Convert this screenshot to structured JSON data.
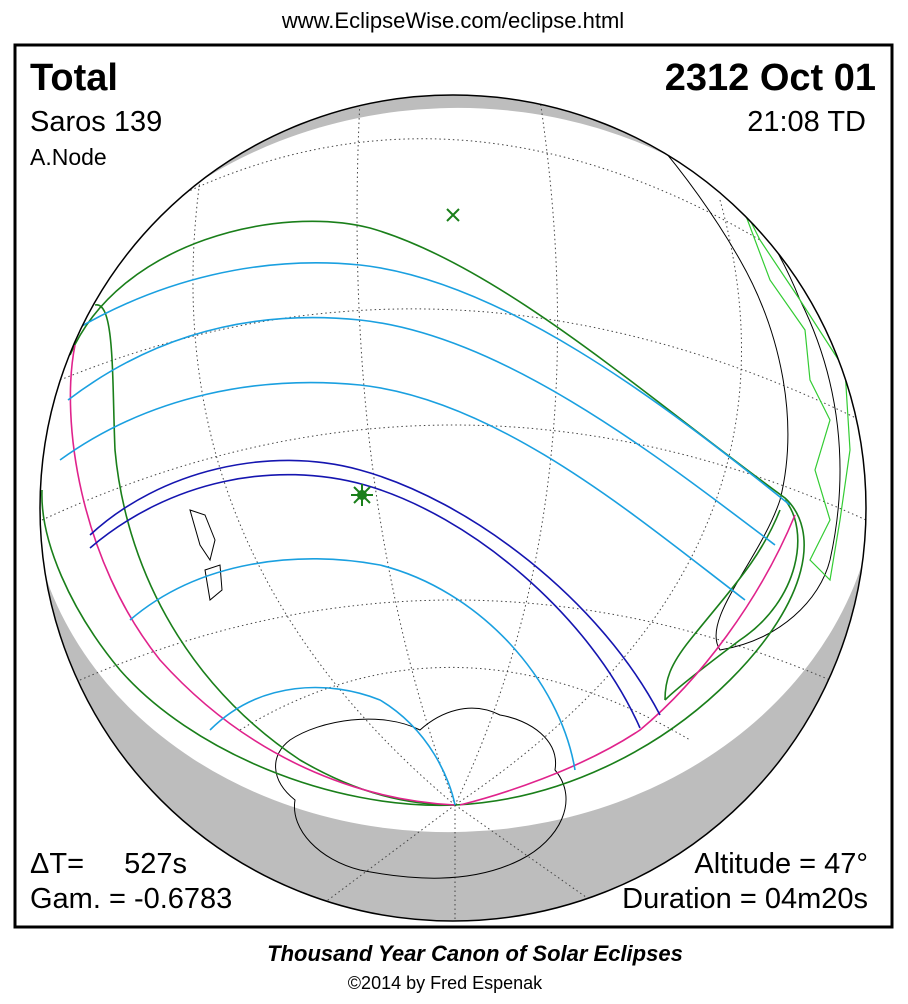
{
  "header": {
    "url": "www.EclipseWise.com/eclipse.html"
  },
  "panel": {
    "eclipse_type": "Total",
    "date": "2312 Oct 01",
    "saros": "Saros 139",
    "time": "21:08 TD",
    "node": "A.Node",
    "delta_t_label": "ΔT=",
    "delta_t_value": "527s",
    "gamma": "Gam. = -0.6783",
    "altitude": "Altitude = 47°",
    "duration": "Duration = 04m20s"
  },
  "footer": {
    "title": "Thousand Year Canon of Solar Eclipses",
    "credit": "©2014 by Fred Espenak"
  }
}
